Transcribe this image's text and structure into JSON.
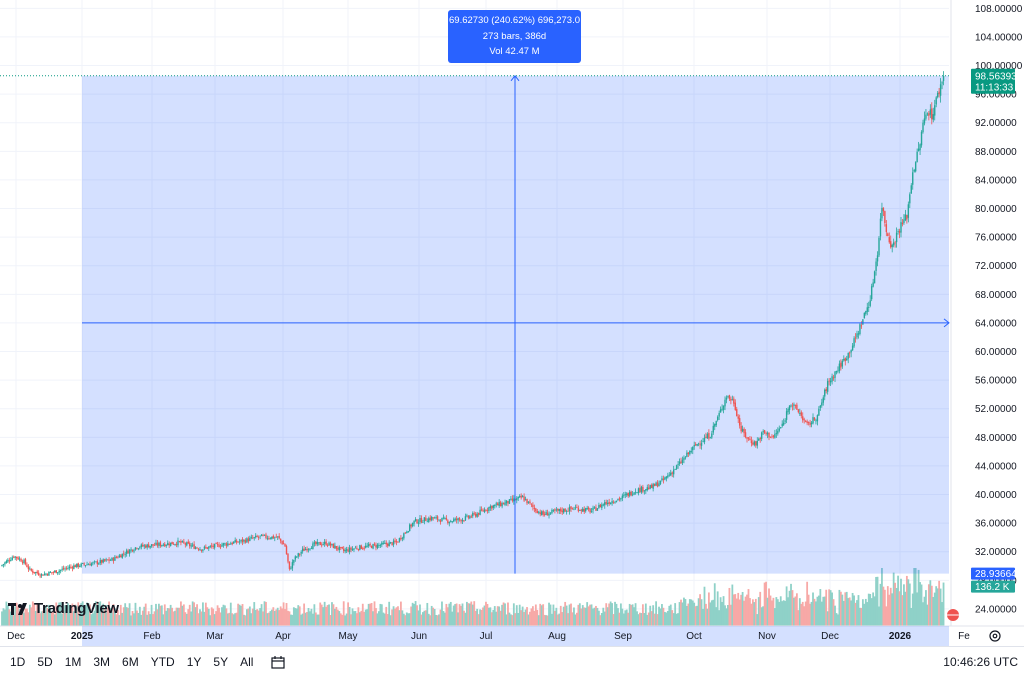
{
  "chart_data": {
    "type": "candlestick",
    "price_axis": {
      "ticks": [
        "24.00000",
        "28.00000",
        "32.00000",
        "36.00000",
        "40.00000",
        "44.00000",
        "48.00000",
        "52.00000",
        "56.00000",
        "60.00000",
        "64.00000",
        "68.00000",
        "72.00000",
        "76.00000",
        "80.00000",
        "84.00000",
        "88.00000",
        "92.00000",
        "96.00000",
        "100.00000",
        "104.00000",
        "108.00000"
      ],
      "ylim": [
        22.5,
        108.2
      ]
    },
    "time_axis": {
      "labels": [
        {
          "text": "Dec",
          "bold": false
        },
        {
          "text": "2025",
          "bold": true
        },
        {
          "text": "Feb",
          "bold": false
        },
        {
          "text": "Mar",
          "bold": false
        },
        {
          "text": "Apr",
          "bold": false
        },
        {
          "text": "May",
          "bold": false
        },
        {
          "text": "Jun",
          "bold": false
        },
        {
          "text": "Jul",
          "bold": false
        },
        {
          "text": "Aug",
          "bold": false
        },
        {
          "text": "Sep",
          "bold": false
        },
        {
          "text": "Oct",
          "bold": false
        },
        {
          "text": "Nov",
          "bold": false
        },
        {
          "text": "Dec",
          "bold": false
        },
        {
          "text": "2026",
          "bold": true
        },
        {
          "text": "Fe",
          "bold": false
        }
      ]
    },
    "price_path": [
      [
        0,
        30.0
      ],
      [
        4,
        30.6
      ],
      [
        9,
        31.4
      ],
      [
        12,
        31.1
      ],
      [
        16,
        30.6
      ],
      [
        20,
        29.4
      ],
      [
        28,
        28.8
      ],
      [
        37,
        29.2
      ],
      [
        50,
        30.0
      ],
      [
        64,
        30.4
      ],
      [
        76,
        30.9
      ],
      [
        93,
        32.7
      ],
      [
        108,
        33.0
      ],
      [
        122,
        33.3
      ],
      [
        137,
        32.4
      ],
      [
        151,
        33.0
      ],
      [
        165,
        33.5
      ],
      [
        177,
        34.1
      ],
      [
        189,
        34.0
      ],
      [
        194,
        32.8
      ],
      [
        197,
        29.4
      ],
      [
        200,
        30.9
      ],
      [
        206,
        32.2
      ],
      [
        214,
        33.0
      ],
      [
        222,
        33.2
      ],
      [
        234,
        32.1
      ],
      [
        244,
        32.6
      ],
      [
        258,
        32.9
      ],
      [
        270,
        33.3
      ],
      [
        282,
        36.2
      ],
      [
        294,
        36.7
      ],
      [
        306,
        36.3
      ],
      [
        316,
        36.6
      ],
      [
        324,
        37.2
      ],
      [
        334,
        38.3
      ],
      [
        344,
        38.8
      ],
      [
        356,
        39.6
      ],
      [
        364,
        38.0
      ],
      [
        370,
        37.2
      ],
      [
        378,
        37.6
      ],
      [
        392,
        38.1
      ],
      [
        403,
        37.7
      ],
      [
        412,
        38.8
      ],
      [
        423,
        39.5
      ],
      [
        433,
        40.6
      ],
      [
        444,
        41.0
      ],
      [
        452,
        42.0
      ],
      [
        463,
        44.3
      ],
      [
        474,
        46.9
      ],
      [
        484,
        48.4
      ],
      [
        490,
        51.2
      ],
      [
        495,
        53.8
      ],
      [
        500,
        53.0
      ],
      [
        505,
        49.0
      ],
      [
        510,
        47.7
      ],
      [
        515,
        47.1
      ],
      [
        520,
        48.7
      ],
      [
        527,
        48.0
      ],
      [
        534,
        50.0
      ],
      [
        538,
        52.9
      ],
      [
        545,
        51.4
      ],
      [
        550,
        49.6
      ],
      [
        557,
        51.0
      ],
      [
        564,
        55.5
      ],
      [
        572,
        57.9
      ],
      [
        578,
        59.7
      ],
      [
        583,
        61.8
      ],
      [
        587,
        64.0
      ],
      [
        593,
        67.3
      ],
      [
        598,
        74.0
      ],
      [
        601,
        80.5
      ],
      [
        604,
        77.0
      ],
      [
        608,
        74.6
      ],
      [
        612,
        76.9
      ],
      [
        618,
        79.0
      ],
      [
        622,
        85.2
      ],
      [
        626,
        88.1
      ],
      [
        629,
        91.6
      ],
      [
        632,
        94.0
      ],
      [
        635,
        93.0
      ],
      [
        640,
        96.5
      ],
      [
        643,
        98.6
      ]
    ],
    "volume_axis_max_label": "136.2 K",
    "last_price": {
      "label": "98.56393",
      "countdown": "11:13:33",
      "color": "#089981"
    },
    "range_box_low_label": "28.93664",
    "measure": {
      "line1": "69.62730 (240.62%) 696,273.0",
      "line2": "273 bars, 386d",
      "line3": "Vol 42.47 M",
      "start_price": 28.93664,
      "end_price": 98.56393,
      "mid_price": 64.0
    },
    "up_color": "#26a69a",
    "down_color": "#ef5350",
    "range_fill_color": "#2962ff"
  },
  "ranges": [
    "1D",
    "5D",
    "1M",
    "3M",
    "6M",
    "YTD",
    "1Y",
    "5Y",
    "All"
  ],
  "clock": "10:46:26 UTC",
  "brand": "TradingView",
  "icons": [
    "calendar-icon",
    "settings-icon",
    "tradingview-logo-icon",
    "currency-flag-icon"
  ]
}
